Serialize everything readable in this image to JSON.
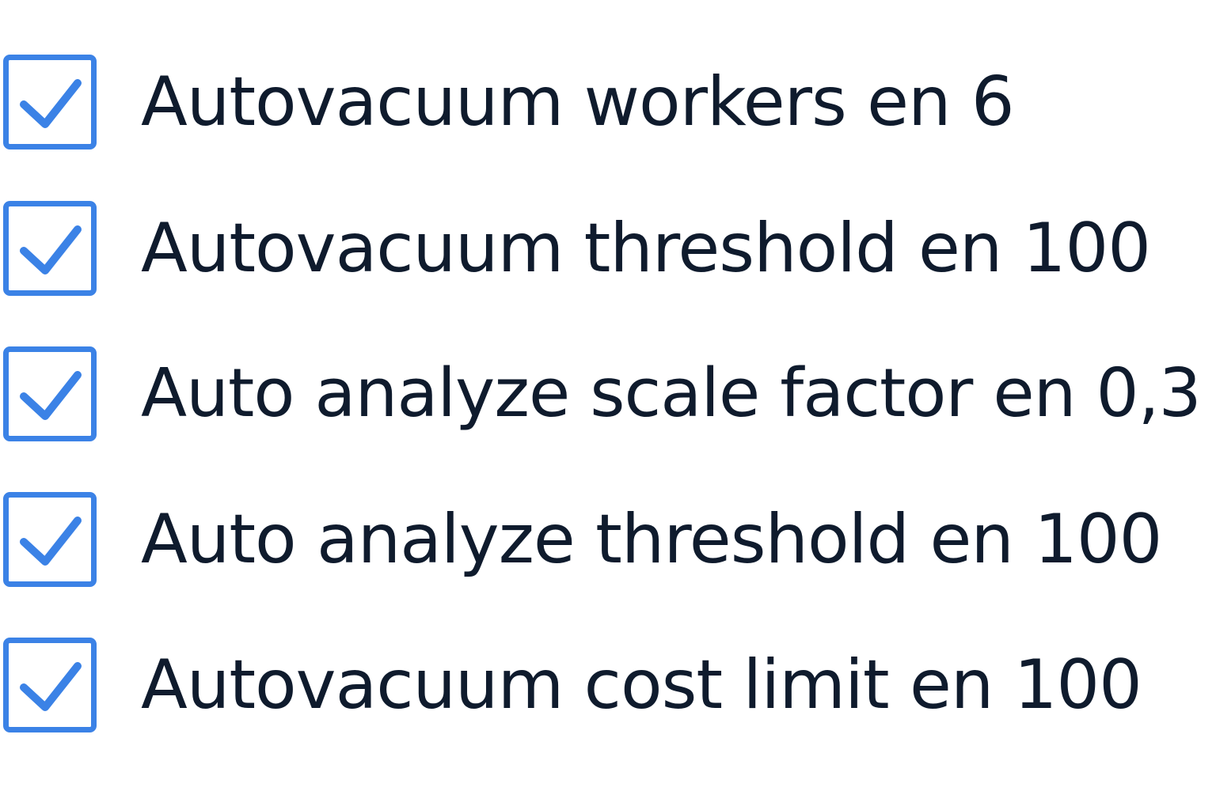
{
  "colors": {
    "checkbox_accent": "#3b82e6",
    "text": "#0f1b2d",
    "background": "#ffffff"
  },
  "checklist": {
    "items": [
      {
        "label": "Autovacuum workers en 6",
        "checked": true,
        "icon": "checkmark-icon"
      },
      {
        "label": "Autovacuum threshold en 100",
        "checked": true,
        "icon": "checkmark-icon"
      },
      {
        "label": "Auto analyze scale factor en 0,3",
        "checked": true,
        "icon": "checkmark-icon"
      },
      {
        "label": "Auto analyze threshold en 100",
        "checked": true,
        "icon": "checkmark-icon"
      },
      {
        "label": "Autovacuum cost limit en 100",
        "checked": true,
        "icon": "checkmark-icon"
      }
    ]
  }
}
